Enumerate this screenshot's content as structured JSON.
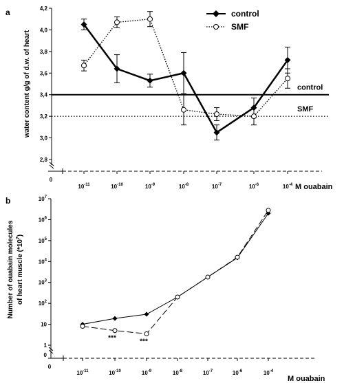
{
  "chart_data": [
    {
      "panel_label": "a",
      "type": "line",
      "ylabel": "water content g/g of d.w. of heart",
      "xlabel": "M ouabain",
      "ylim": [
        2.8,
        4.2
      ],
      "yticks": [
        "4,2",
        "4,0",
        "3,8",
        "3,6",
        "3,4",
        "3,2",
        "3,0",
        "2,8"
      ],
      "x_origin_label": "0",
      "x_exponents": [
        "-11",
        "-10",
        "-9",
        "-8",
        "-7",
        "-6",
        "-4"
      ],
      "legend_position": "top-right",
      "series": [
        {
          "name": "control",
          "style": "solid, filled diamonds",
          "values": [
            4.05,
            3.64,
            3.53,
            3.6,
            3.05,
            3.28,
            3.72
          ],
          "errors": [
            0.05,
            0.13,
            0.06,
            0.19,
            0.07,
            0.09,
            0.12
          ]
        },
        {
          "name": "SMF",
          "style": "dotted, open circles",
          "values": [
            3.67,
            4.07,
            4.1,
            3.26,
            3.22,
            3.2,
            3.55
          ],
          "errors": [
            0.05,
            0.05,
            0.07,
            0.14,
            0.06,
            0.08,
            0.09
          ]
        }
      ],
      "reference_lines": [
        {
          "label": "control",
          "value": 3.4,
          "style": "solid"
        },
        {
          "label": "SMF",
          "value": 3.2,
          "style": "dotted"
        }
      ]
    },
    {
      "panel_label": "b",
      "type": "line",
      "ylabel_line1": "Number of ouabain molecules",
      "ylabel_line2": "of heart muscle (*10",
      "ylabel_exp": "7",
      "ylabel_end": ")",
      "xlabel": "M ouabain",
      "yscale": "log",
      "ylim": [
        1,
        10000000
      ],
      "yticks": [
        {
          "base": "10",
          "exp": "7"
        },
        {
          "base": "10",
          "exp": "6"
        },
        {
          "base": "10",
          "exp": "5"
        },
        {
          "base": "10",
          "exp": "4"
        },
        {
          "base": "10",
          "exp": "3"
        },
        {
          "base": "10",
          "exp": "2"
        },
        {
          "base": "10",
          "exp": ""
        },
        {
          "base": "1",
          "exp": ""
        }
      ],
      "y_origin_label": "0",
      "x_origin_label": "0",
      "x_exponents": [
        "-11",
        "-10",
        "-9",
        "-8",
        "-7",
        "-6",
        "-4"
      ],
      "series": [
        {
          "style": "solid, filled diamonds",
          "values": [
            10,
            19,
            30,
            200,
            1800,
            15000,
            2000000
          ]
        },
        {
          "style": "dashed, open circles",
          "values": [
            8,
            5,
            3.5,
            200,
            1800,
            16000,
            2800000
          ]
        }
      ],
      "annotations": [
        "***",
        "***"
      ]
    }
  ]
}
